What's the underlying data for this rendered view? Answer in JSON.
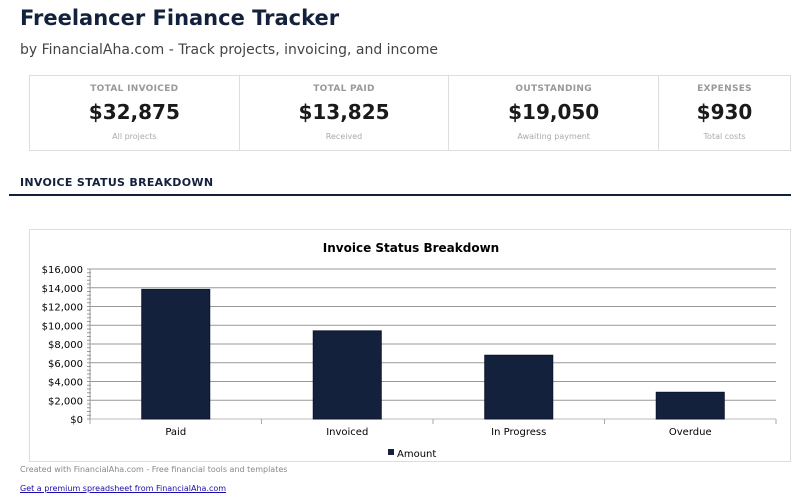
{
  "header": {
    "title": "Freelancer Finance Tracker",
    "subtitle": "by FinancialAha.com - Track projects, invoicing, and income"
  },
  "cards": [
    {
      "label": "TOTAL INVOICED",
      "value": "$32,875",
      "sub": "All projects"
    },
    {
      "label": "TOTAL PAID",
      "value": "$13,825",
      "sub": "Received"
    },
    {
      "label": "OUTSTANDING",
      "value": "$19,050",
      "sub": "Awaiting payment"
    },
    {
      "label": "EXPENSES",
      "value": "$930",
      "sub": "Total costs"
    }
  ],
  "section_title": "INVOICE STATUS BREAKDOWN",
  "chart_data": {
    "type": "bar",
    "title": "Invoice Status Breakdown",
    "categories": [
      "Paid",
      "Invoiced",
      "In Progress",
      "Overdue"
    ],
    "series": [
      {
        "name": "Amount",
        "values": [
          13825,
          9400,
          6800,
          2850
        ]
      }
    ],
    "ylim": [
      0,
      16000
    ],
    "yticks": [
      "$0",
      "$2,000",
      "$4,000",
      "$6,000",
      "$8,000",
      "$10,000",
      "$12,000",
      "$14,000",
      "$16,000"
    ],
    "grid": true,
    "legend": "bottom",
    "color": "#14213d"
  },
  "footer": {
    "text": "Created with FinancialAha.com - Free financial tools and templates",
    "link": "Get a premium spreadsheet from FinancialAha.com"
  }
}
